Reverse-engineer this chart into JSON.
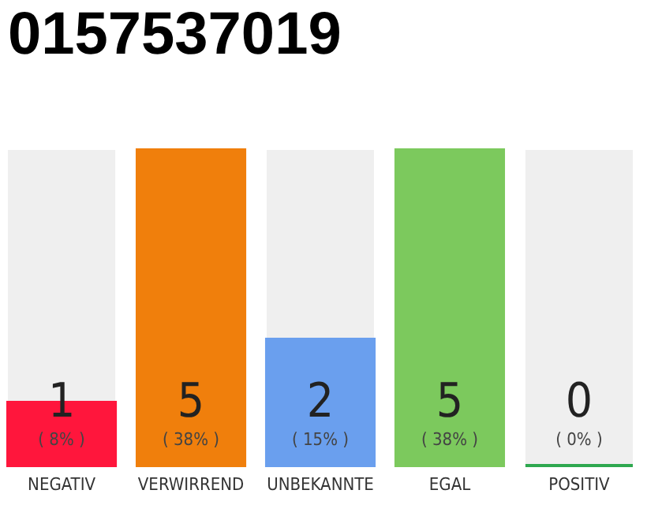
{
  "chart_data": {
    "type": "bar",
    "title": "0157537019",
    "categories": [
      "NEGATIV",
      "VERWIRREND",
      "UNBEKANNTE",
      "EGAL",
      "POSITIV"
    ],
    "values": [
      1,
      5,
      2,
      5,
      0
    ],
    "colors": [
      "#ff163c",
      "#f07f0c",
      "#6a9fee",
      "#7cc95d",
      "#2ea84f"
    ],
    "ylim": [
      0,
      5
    ],
    "tick_labels": "x",
    "data_labels": true,
    "annotations": [
      "( 8% )",
      "( 38% )",
      "( 15% )",
      "( 38% )",
      "( 0% )"
    ]
  }
}
